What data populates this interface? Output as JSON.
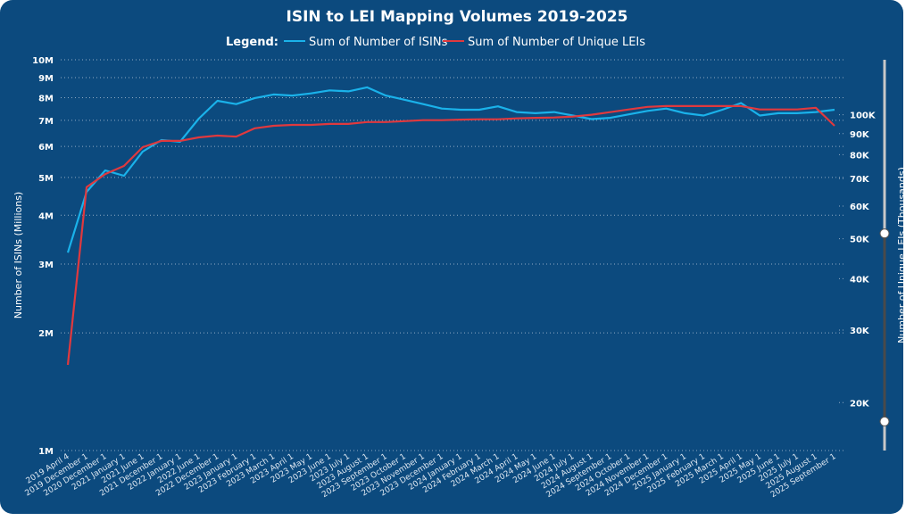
{
  "colors": {
    "background": "#0c4a7e",
    "isins": "#1ab2ea",
    "leis": "#e0393e",
    "text": "#ffffff",
    "grid": "#8fa9c4"
  },
  "chart_data": {
    "type": "line",
    "title": "ISIN to LEI Mapping Volumes 2019-2025",
    "legend": {
      "label": "Legend:",
      "placement": "top-center"
    },
    "grid": true,
    "categories": [
      "2019 April 4",
      "2019 December 1",
      "2020 December 1",
      "2021 January 1",
      "2021 June 1",
      "2021 December 1",
      "2022 January 1",
      "2022 June 1",
      "2022 December 1",
      "2023 January 1",
      "2023 February 1",
      "2023 March 1",
      "2023 April 1",
      "2023 May 1",
      "2023 June 1",
      "2023 July 1",
      "2023 August 1",
      "2023 September 1",
      "2023 October 1",
      "2023 November 1",
      "2023 December 1",
      "2024 January 1",
      "2024 February 1",
      "2024 March 1",
      "2024 April 1",
      "2024 May 1",
      "2024 June 1",
      "2024 July 1",
      "2024 August 1",
      "2024 September 1",
      "2024 October 1",
      "2024 November 1",
      "2024 December 1",
      "2025 January 1",
      "2025 February 1",
      "2025 March 1",
      "2025 April 1",
      "2025 May 1",
      "2025 June 1",
      "2025 July 1",
      "2025 August 1",
      "2025 September 1"
    ],
    "y_left": {
      "label": "Number of ISINs (Millions)",
      "scale": "log",
      "range": [
        1000000,
        10000000
      ],
      "ticks": [
        {
          "v": 1000000,
          "t": "1M"
        },
        {
          "v": 2000000,
          "t": "2M"
        },
        {
          "v": 3000000,
          "t": "3M"
        },
        {
          "v": 4000000,
          "t": "4M"
        },
        {
          "v": 5000000,
          "t": "5M"
        },
        {
          "v": 6000000,
          "t": "6M"
        },
        {
          "v": 7000000,
          "t": "7M"
        },
        {
          "v": 8000000,
          "t": "8M"
        },
        {
          "v": 9000000,
          "t": "9M"
        },
        {
          "v": 10000000,
          "t": "10M"
        }
      ]
    },
    "y_right": {
      "label": "Number of Unique LEIs (Thousands)",
      "scale": "log",
      "range": [
        15300,
        136000
      ],
      "ticks": [
        {
          "v": 20000,
          "t": "20K"
        },
        {
          "v": 30000,
          "t": "30K"
        },
        {
          "v": 40000,
          "t": "40K"
        },
        {
          "v": 50000,
          "t": "50K"
        },
        {
          "v": 60000,
          "t": "60K"
        },
        {
          "v": 70000,
          "t": "70K"
        },
        {
          "v": 80000,
          "t": "80K"
        },
        {
          "v": 90000,
          "t": "90K"
        },
        {
          "v": 100000,
          "t": "100K"
        }
      ]
    },
    "series": [
      {
        "name": "Sum of Number of ISINs",
        "axis": "left",
        "values": [
          3210000,
          4590000,
          5210000,
          5050000,
          5820000,
          6230000,
          6170000,
          7070000,
          7850000,
          7700000,
          7980000,
          8150000,
          8100000,
          8200000,
          8350000,
          8300000,
          8500000,
          8100000,
          7900000,
          7700000,
          7500000,
          7450000,
          7450000,
          7600000,
          7350000,
          7300000,
          7350000,
          7200000,
          7050000,
          7100000,
          7250000,
          7400000,
          7500000,
          7300000,
          7200000,
          7450000,
          7750000,
          7200000,
          7300000,
          7300000,
          7350000,
          7450000
        ]
      },
      {
        "name": "Sum of Number of Unique LEIs",
        "axis": "right",
        "values": [
          24700,
          66700,
          71800,
          75100,
          83400,
          86400,
          86400,
          88100,
          89000,
          88500,
          92700,
          94000,
          94500,
          94500,
          95000,
          95000,
          96000,
          96000,
          96500,
          97000,
          97000,
          97300,
          97500,
          97500,
          98000,
          98300,
          98500,
          99000,
          100000,
          101500,
          103000,
          104500,
          105000,
          105000,
          105000,
          105000,
          105000,
          103000,
          103000,
          103000,
          104000,
          94000
        ]
      }
    ],
    "range_slider": {
      "axis": "right",
      "low": 18000,
      "high": 51500
    }
  }
}
